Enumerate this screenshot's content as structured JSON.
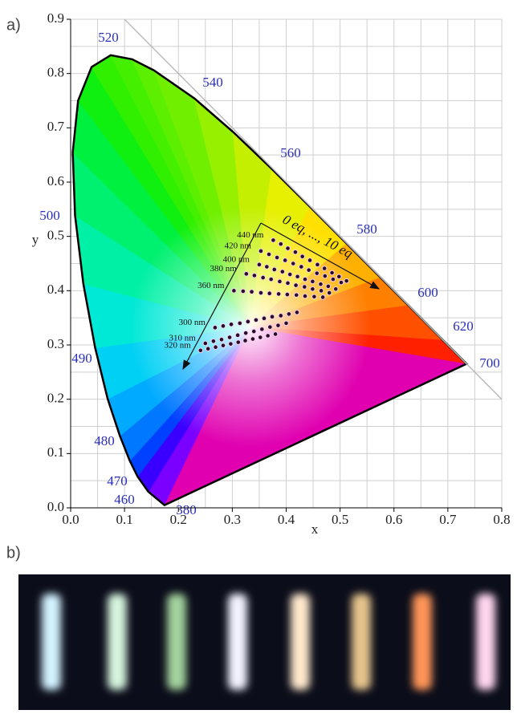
{
  "panel_labels": [
    "a)",
    "b)"
  ],
  "chart_data": {
    "type": "scatter",
    "x_label": "x",
    "y_label": "y",
    "xlim": [
      0,
      0.8
    ],
    "ylim": [
      0,
      0.9
    ],
    "xticks": [
      {
        "value": 0,
        "label": "0.0"
      },
      {
        "value": 0.1,
        "label": "0.1"
      },
      {
        "value": 0.2,
        "label": "0.2"
      },
      {
        "value": 0.3,
        "label": "0.3"
      },
      {
        "value": 0.4,
        "label": "0.4"
      },
      {
        "value": 0.5,
        "label": "0.5"
      },
      {
        "value": 0.6,
        "label": "0.6"
      },
      {
        "value": 0.7,
        "label": "0.7"
      },
      {
        "value": 0.8,
        "label": "0.8"
      }
    ],
    "yticks": [
      {
        "value": 0,
        "label": "0.0"
      },
      {
        "value": 0.1,
        "label": "0.1"
      },
      {
        "value": 0.2,
        "label": "0.2"
      },
      {
        "value": 0.3,
        "label": "0.3"
      },
      {
        "value": 0.4,
        "label": "0.4"
      },
      {
        "value": 0.5,
        "label": "0.5"
      },
      {
        "value": 0.6,
        "label": "0.6"
      },
      {
        "value": 0.7,
        "label": "0.7"
      },
      {
        "value": 0.8,
        "label": "0.8"
      },
      {
        "value": 0.9,
        "label": "0.9"
      }
    ],
    "minor_xticks": [
      0.05,
      0.15,
      0.25,
      0.35,
      0.45,
      0.55,
      0.65,
      0.75
    ],
    "minor_yticks": [
      0.05,
      0.15,
      0.25,
      0.35,
      0.45,
      0.55,
      0.65,
      0.75,
      0.85
    ],
    "grid": true,
    "wavelength_labels": [
      "380",
      "460",
      "470",
      "480",
      "490",
      "500",
      "520",
      "540",
      "560",
      "580",
      "600",
      "620",
      "700"
    ],
    "annotation": "0 eq, ..., 10 eq",
    "series": [
      {
        "name": "440 nm",
        "color": "#2a0a2a",
        "x": [
          0.376,
          0.39,
          0.403,
          0.417,
          0.43,
          0.444,
          0.458,
          0.471,
          0.485,
          0.498,
          0.512
        ],
        "values": [
          0.493,
          0.486,
          0.478,
          0.471,
          0.463,
          0.456,
          0.448,
          0.441,
          0.433,
          0.426,
          0.418
        ]
      },
      {
        "name": "420 nm",
        "color": "#2a0a2a",
        "x": [
          0.353,
          0.368,
          0.383,
          0.398,
          0.413,
          0.428,
          0.442,
          0.457,
          0.472,
          0.487,
          0.502
        ],
        "values": [
          0.473,
          0.467,
          0.461,
          0.456,
          0.45,
          0.444,
          0.438,
          0.432,
          0.427,
          0.421,
          0.415
        ]
      },
      {
        "name": "400 nm",
        "color": "#2a0a2a",
        "x": [
          0.35,
          0.364,
          0.378,
          0.393,
          0.407,
          0.421,
          0.435,
          0.449,
          0.464,
          0.478,
          0.492
        ],
        "values": [
          0.448,
          0.444,
          0.439,
          0.435,
          0.43,
          0.426,
          0.421,
          0.417,
          0.412,
          0.408,
          0.403
        ]
      },
      {
        "name": "380 nm",
        "color": "#2a0a2a",
        "x": [
          0.326,
          0.341,
          0.357,
          0.372,
          0.388,
          0.403,
          0.418,
          0.434,
          0.449,
          0.465,
          0.48
        ],
        "values": [
          0.431,
          0.428,
          0.424,
          0.421,
          0.417,
          0.414,
          0.41,
          0.407,
          0.403,
          0.4,
          0.396
        ]
      },
      {
        "name": "360 nm",
        "color": "#2a0a2a",
        "x": [
          0.303,
          0.32,
          0.336,
          0.353,
          0.369,
          0.386,
          0.402,
          0.419,
          0.435,
          0.452,
          0.468
        ],
        "values": [
          0.4,
          0.399,
          0.398,
          0.396,
          0.395,
          0.394,
          0.393,
          0.392,
          0.39,
          0.389,
          0.388
        ]
      },
      {
        "name": "300 nm",
        "color": "#2a0a2a",
        "x": [
          0.268,
          0.283,
          0.298,
          0.314,
          0.329,
          0.344,
          0.359,
          0.374,
          0.39,
          0.405,
          0.42
        ],
        "values": [
          0.332,
          0.335,
          0.338,
          0.34,
          0.343,
          0.346,
          0.349,
          0.352,
          0.354,
          0.357,
          0.36
        ]
      },
      {
        "name": "310 nm",
        "color": "#2a0a2a",
        "x": [
          0.25,
          0.265,
          0.28,
          0.295,
          0.31,
          0.325,
          0.34,
          0.355,
          0.37,
          0.385,
          0.4
        ],
        "values": [
          0.303,
          0.307,
          0.31,
          0.314,
          0.318,
          0.322,
          0.325,
          0.329,
          0.333,
          0.336,
          0.34
        ]
      },
      {
        "name": "320 nm",
        "color": "#2a0a2a",
        "x": [
          0.241,
          0.255,
          0.269,
          0.283,
          0.297,
          0.311,
          0.324,
          0.338,
          0.352,
          0.366,
          0.38
        ],
        "values": [
          0.29,
          0.293,
          0.296,
          0.299,
          0.302,
          0.305,
          0.308,
          0.311,
          0.314,
          0.317,
          0.32
        ]
      }
    ]
  }
}
